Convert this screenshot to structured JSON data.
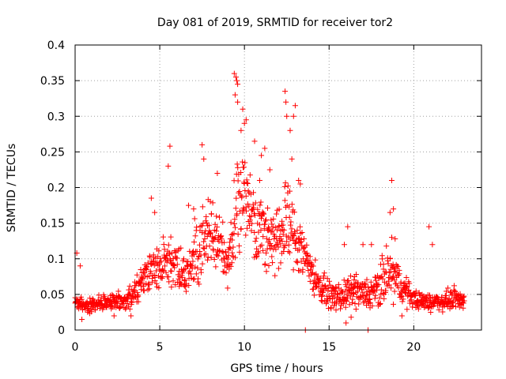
{
  "chart_data": {
    "type": "scatter",
    "title": "Day 081 of 2019, SRMTID for receiver tor2",
    "xlabel": "GPS time / hours",
    "ylabel": "SRMTID / TECUs",
    "xlim": [
      0,
      24
    ],
    "ylim": [
      0,
      0.4
    ],
    "xticks": [
      "0",
      "5",
      "10",
      "15",
      "20"
    ],
    "yticks": [
      "0",
      "0.05",
      "0.1",
      "0.15",
      "0.2",
      "0.25",
      "0.3",
      "0.35",
      "0.4"
    ],
    "xtick_values": [
      0,
      5,
      10,
      15,
      20
    ],
    "ytick_values": [
      0,
      0.05,
      0.1,
      0.15,
      0.2,
      0.25,
      0.3,
      0.35,
      0.4
    ],
    "grid": true,
    "marker": "plus",
    "color": "#ff0000",
    "series": [
      {
        "name": "SRMTID",
        "trend": {
          "x": [
            0,
            0.5,
            1,
            1.5,
            2,
            2.5,
            3,
            3.5,
            4,
            4.5,
            5,
            5.5,
            6,
            6.5,
            7,
            7.5,
            8,
            8.5,
            9,
            9.5,
            10,
            10.5,
            11,
            11.5,
            12,
            12.5,
            13,
            13.5,
            14,
            14.5,
            15,
            15.5,
            16,
            16.5,
            17,
            17.5,
            18,
            18.5,
            19,
            19.5,
            20,
            20.5,
            21,
            21.5,
            22,
            22.5,
            23
          ],
          "y": [
            0.04,
            0.035,
            0.035,
            0.038,
            0.04,
            0.04,
            0.042,
            0.05,
            0.07,
            0.085,
            0.09,
            0.1,
            0.09,
            0.075,
            0.095,
            0.12,
            0.14,
            0.12,
            0.09,
            0.16,
            0.2,
            0.16,
            0.14,
            0.13,
            0.12,
            0.15,
            0.13,
            0.11,
            0.08,
            0.06,
            0.05,
            0.045,
            0.05,
            0.055,
            0.05,
            0.05,
            0.06,
            0.08,
            0.07,
            0.055,
            0.045,
            0.04,
            0.04,
            0.04,
            0.042,
            0.045,
            0.04
          ],
          "spread": [
            0.012,
            0.012,
            0.013,
            0.013,
            0.013,
            0.013,
            0.015,
            0.018,
            0.025,
            0.03,
            0.035,
            0.045,
            0.04,
            0.035,
            0.045,
            0.055,
            0.055,
            0.045,
            0.035,
            0.08,
            0.07,
            0.06,
            0.055,
            0.05,
            0.06,
            0.07,
            0.06,
            0.04,
            0.03,
            0.022,
            0.02,
            0.02,
            0.022,
            0.025,
            0.025,
            0.025,
            0.035,
            0.045,
            0.035,
            0.022,
            0.015,
            0.013,
            0.013,
            0.013,
            0.015,
            0.016,
            0.015
          ]
        },
        "points": [
          [
            0.1,
            0.108
          ],
          [
            0.3,
            0.09
          ],
          [
            5.6,
            0.258
          ],
          [
            5.5,
            0.23
          ],
          [
            7.5,
            0.26
          ],
          [
            7.6,
            0.24
          ],
          [
            9.4,
            0.36
          ],
          [
            9.5,
            0.355
          ],
          [
            9.6,
            0.345
          ],
          [
            9.55,
            0.35
          ],
          [
            9.45,
            0.33
          ],
          [
            9.6,
            0.32
          ],
          [
            9.9,
            0.31
          ],
          [
            10.0,
            0.29
          ],
          [
            9.8,
            0.28
          ],
          [
            10.1,
            0.295
          ],
          [
            10.6,
            0.265
          ],
          [
            11.2,
            0.255
          ],
          [
            12.4,
            0.335
          ],
          [
            12.5,
            0.3
          ],
          [
            12.45,
            0.32
          ],
          [
            12.9,
            0.3
          ],
          [
            13.0,
            0.315
          ],
          [
            12.7,
            0.28
          ],
          [
            12.8,
            0.24
          ],
          [
            13.2,
            0.21
          ],
          [
            13.3,
            0.205
          ],
          [
            11.0,
            0.245
          ],
          [
            11.5,
            0.225
          ],
          [
            10.9,
            0.21
          ],
          [
            18.7,
            0.21
          ],
          [
            18.8,
            0.17
          ],
          [
            18.6,
            0.165
          ],
          [
            18.7,
            0.13
          ],
          [
            18.9,
            0.128
          ],
          [
            20.9,
            0.145
          ],
          [
            21.1,
            0.12
          ],
          [
            17.5,
            0.12
          ],
          [
            15.9,
            0.12
          ],
          [
            16.1,
            0.145
          ],
          [
            17.0,
            0.12
          ],
          [
            16.0,
            0.01
          ],
          [
            16.3,
            0.018
          ],
          [
            17.3,
            0.0
          ],
          [
            19.3,
            0.02
          ],
          [
            21.0,
            0.025
          ],
          [
            4.5,
            0.185
          ],
          [
            4.7,
            0.165
          ],
          [
            6.7,
            0.175
          ],
          [
            7.0,
            0.17
          ],
          [
            8.4,
            0.22
          ],
          [
            3.3,
            0.02
          ],
          [
            2.3,
            0.02
          ],
          [
            0.4,
            0.015
          ],
          [
            13.6,
            0.0
          ]
        ]
      }
    ]
  }
}
